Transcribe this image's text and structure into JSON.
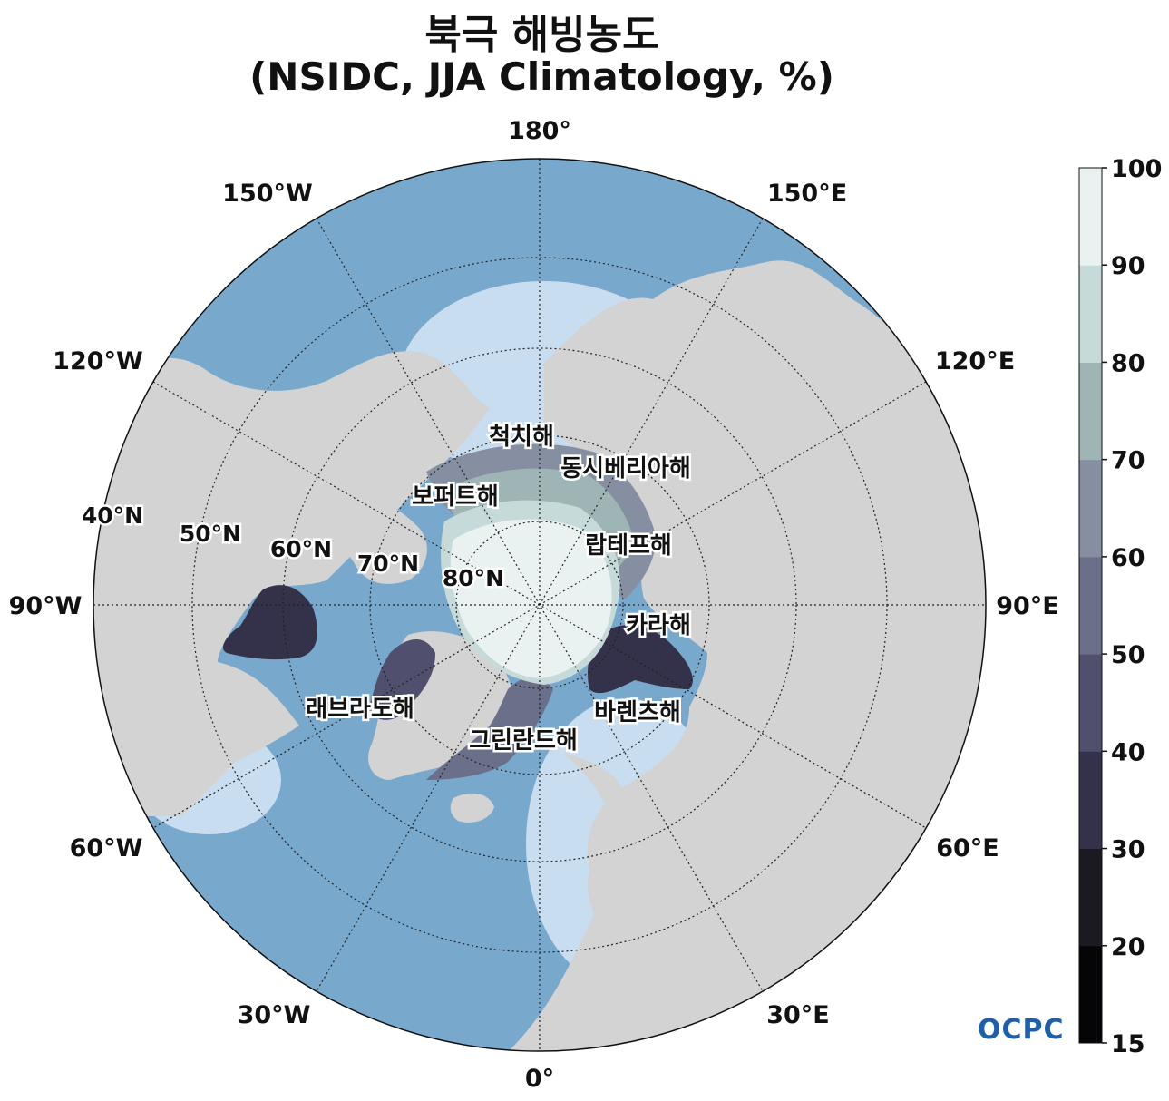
{
  "title": {
    "line1": "북극 해빙농도",
    "line2": "(NSIDC, JJA Climatology, %)"
  },
  "map": {
    "projection": "north-polar-stereographic",
    "longitude_labels": {
      "lon_180": "180°",
      "lon_150w": "150°W",
      "lon_150e": "150°E",
      "lon_120w": "120°W",
      "lon_120e": "120°E",
      "lon_90w": "90°W",
      "lon_90e": "90°E",
      "lon_60w": "60°W",
      "lon_60e": "60°E",
      "lon_30w": "30°W",
      "lon_30e": "30°E",
      "lon_0": "0°"
    },
    "latitude_labels": {
      "lat_40": "40°N",
      "lat_50": "50°N",
      "lat_60": "60°N",
      "lat_70": "70°N",
      "lat_80": "80°N"
    },
    "seas": {
      "chukchi": "척치해",
      "east_siberian": "동시베리아해",
      "beaufort": "보퍼트해",
      "laptev": "랍테프해",
      "kara": "카라해",
      "barents": "바렌츠해",
      "labrador": "래브라도해",
      "greenland": "그린란드해"
    },
    "colors": {
      "ocean_open": "#79a8cd",
      "ocean_shelf": "#c9ddf0",
      "land": "#d3d3d3",
      "grid": "#222222"
    }
  },
  "colorbar": {
    "ticks": [
      "15",
      "20",
      "30",
      "40",
      "50",
      "60",
      "70",
      "80",
      "90",
      "100"
    ],
    "levels": [
      15,
      20,
      30,
      40,
      50,
      60,
      70,
      80,
      90,
      100
    ],
    "colors": [
      "#050507",
      "#1b1a22",
      "#33324a",
      "#50506e",
      "#6a6f8a",
      "#858fa1",
      "#9fb4b5",
      "#c6dad9",
      "#eaf2f1"
    ]
  },
  "logo": "OCPC"
}
